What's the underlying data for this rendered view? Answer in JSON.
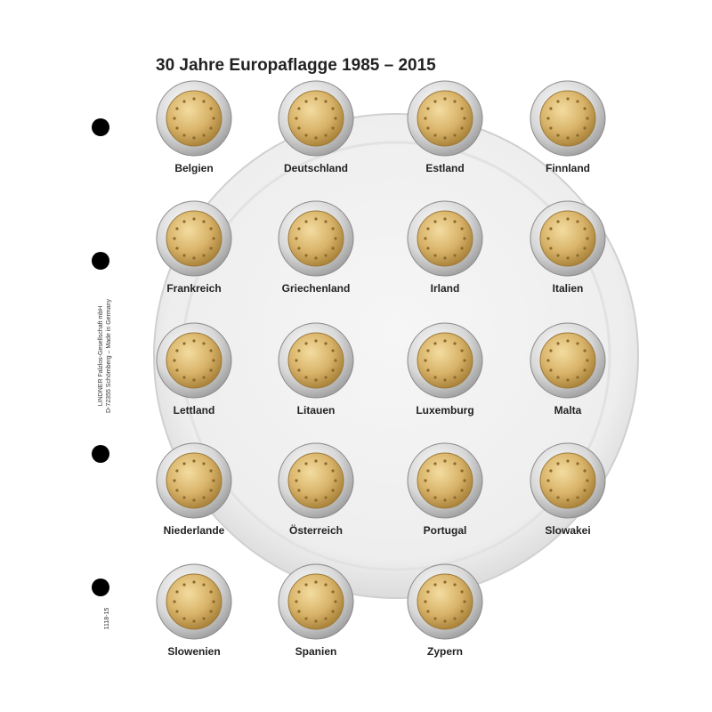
{
  "title": "30 Jahre Europaflagge 1985 – 2015",
  "imprint": [
    "LINDNER Falzlos-Gesellschaft mbH",
    "D-72355 Schömberg – Made in Germany"
  ],
  "code": "1118-15",
  "coins": [
    "Belgien",
    "Deutschland",
    "Estland",
    "Finnland",
    "Frankreich",
    "Griechenland",
    "Irland",
    "Italien",
    "Lettland",
    "Litauen",
    "Luxemburg",
    "Malta",
    "Niederlande",
    "Österreich",
    "Portugal",
    "Slowakei",
    "Slowenien",
    "Spanien",
    "Zypern"
  ]
}
